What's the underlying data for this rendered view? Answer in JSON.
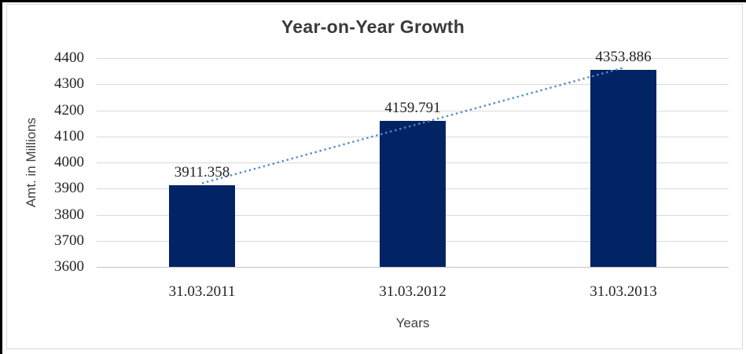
{
  "chart_data": {
    "type": "bar",
    "title": "Year-on-Year Growth",
    "categories": [
      "31.03.2011",
      "31.03.2012",
      "31.03.2013"
    ],
    "values": [
      3911.358,
      4159.791,
      4353.886
    ],
    "data_labels": [
      "3911.358",
      "4159.791",
      "4353.886"
    ],
    "xlabel": "Years",
    "ylabel": "Amt. in Millions",
    "ylim": [
      3600,
      4400
    ],
    "ytick_step": 100,
    "ytick_labels": [
      "4400",
      "4300",
      "4200",
      "4100",
      "4000",
      "3900",
      "3800",
      "3700",
      "3600"
    ],
    "grid": true,
    "legend_position": "none",
    "colors": {
      "bar": "#022364",
      "trendline": "#4f8cc9",
      "gridline": "#d9d9d9",
      "axis_text": "#242424",
      "title_text": "#3a3a3a"
    },
    "trendline": {
      "type": "linear",
      "style": "dotted"
    }
  }
}
